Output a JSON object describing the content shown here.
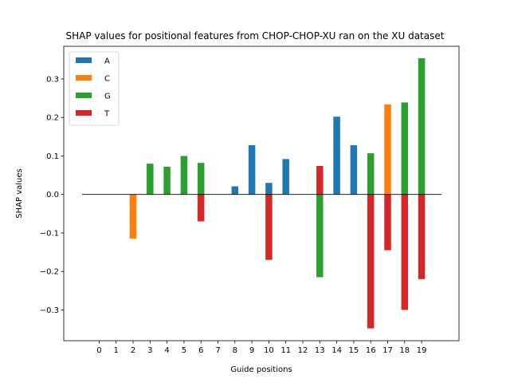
{
  "chart_data": {
    "type": "bar",
    "title": "SHAP values for positional features from CHOP-CHOP-XU ran on the XU dataset",
    "xlabel": "Guide positions",
    "ylabel": "SHAP values",
    "categories": [
      "0",
      "1",
      "2",
      "3",
      "4",
      "5",
      "6",
      "7",
      "8",
      "9",
      "10",
      "11",
      "12",
      "13",
      "14",
      "15",
      "16",
      "17",
      "18",
      "19"
    ],
    "ylim": [
      -0.38,
      0.385
    ],
    "yticks": [
      -0.3,
      -0.2,
      -0.1,
      0.0,
      0.1,
      0.2,
      0.3
    ],
    "ytick_labels": [
      "−0.3",
      "−0.2",
      "−0.1",
      "0.0",
      "0.1",
      "0.2",
      "0.3"
    ],
    "legend_position": "upper-left",
    "series": [
      {
        "name": "A",
        "color": "#1f77b4",
        "values": [
          0,
          0,
          0,
          0,
          0,
          0,
          0,
          0,
          0.021,
          0.128,
          0.03,
          0.092,
          0,
          0,
          0.202,
          0.128,
          0,
          0,
          0,
          0
        ]
      },
      {
        "name": "C",
        "color": "#ff7f0e",
        "values": [
          0,
          0,
          -0.115,
          0,
          0,
          0,
          0,
          0,
          0,
          0,
          0,
          0,
          0,
          0,
          0,
          0,
          0,
          0.234,
          0,
          0
        ]
      },
      {
        "name": "G",
        "color": "#2ca02c",
        "values": [
          0,
          0,
          0,
          0.08,
          0.072,
          0.1,
          0.082,
          0,
          0,
          0,
          0,
          0,
          0,
          -0.215,
          0,
          0,
          0.107,
          0,
          0.239,
          0.354
        ]
      },
      {
        "name": "T",
        "color": "#d62728",
        "values": [
          0,
          0,
          0,
          0,
          0,
          0,
          -0.07,
          0,
          0,
          0,
          -0.17,
          0,
          0,
          0.074,
          0,
          0,
          -0.348,
          -0.145,
          -0.3,
          -0.22
        ]
      }
    ]
  }
}
